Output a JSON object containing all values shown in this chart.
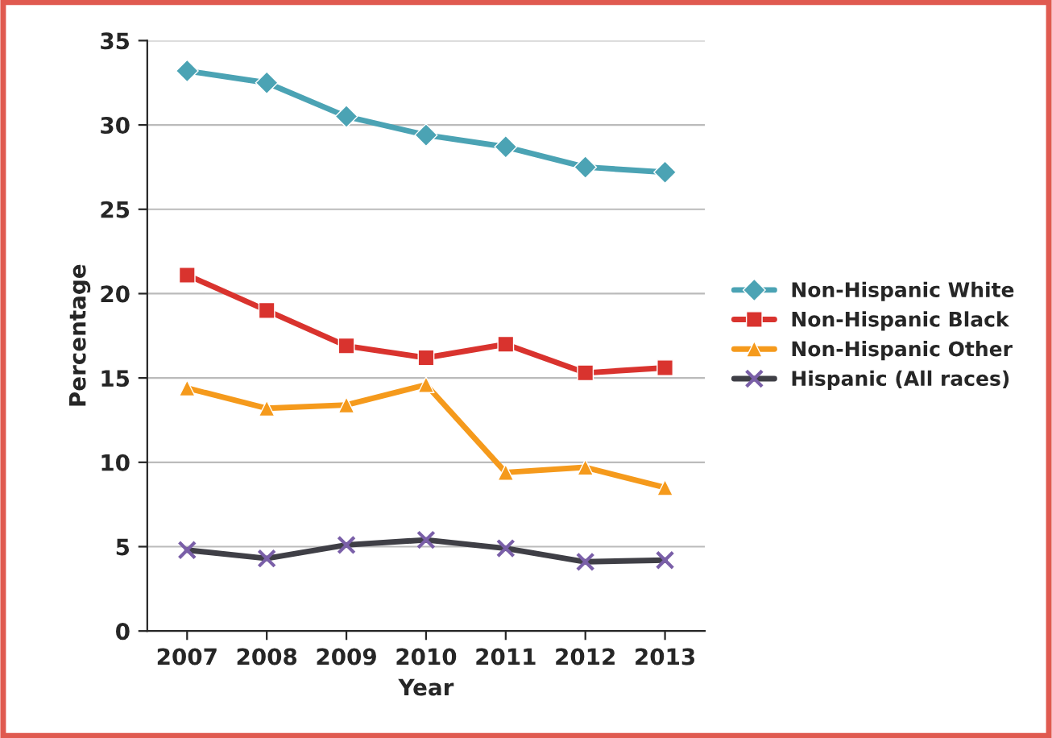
{
  "chart_data": {
    "type": "line",
    "xlabel": "Year",
    "ylabel": "Percentage",
    "categories": [
      "2007",
      "2008",
      "2009",
      "2010",
      "2011",
      "2012",
      "2013"
    ],
    "series": [
      {
        "name": "Non-Hispanic White",
        "color": "#4ba3b4",
        "marker": "diamond",
        "values": [
          33.2,
          32.5,
          30.5,
          29.4,
          28.7,
          27.5,
          27.2
        ]
      },
      {
        "name": "Non-Hispanic Black",
        "color": "#d9332e",
        "marker": "square",
        "values": [
          21.1,
          19.0,
          16.9,
          16.2,
          17.0,
          15.3,
          15.6
        ]
      },
      {
        "name": "Non-Hispanic Other",
        "color": "#f59a1c",
        "marker": "triangle",
        "values": [
          14.4,
          13.2,
          13.4,
          14.6,
          9.4,
          9.7,
          8.5
        ]
      },
      {
        "name": "Hispanic (All races)",
        "color": "#3f3f46",
        "marker": "cross",
        "values": [
          4.8,
          4.3,
          5.1,
          5.4,
          4.9,
          4.1,
          4.2
        ]
      }
    ],
    "ylim": [
      0,
      35
    ],
    "yticks": [
      0,
      5,
      10,
      15,
      20,
      25,
      30,
      35
    ],
    "grid": "y",
    "legend": "right",
    "line_style": "solid"
  }
}
